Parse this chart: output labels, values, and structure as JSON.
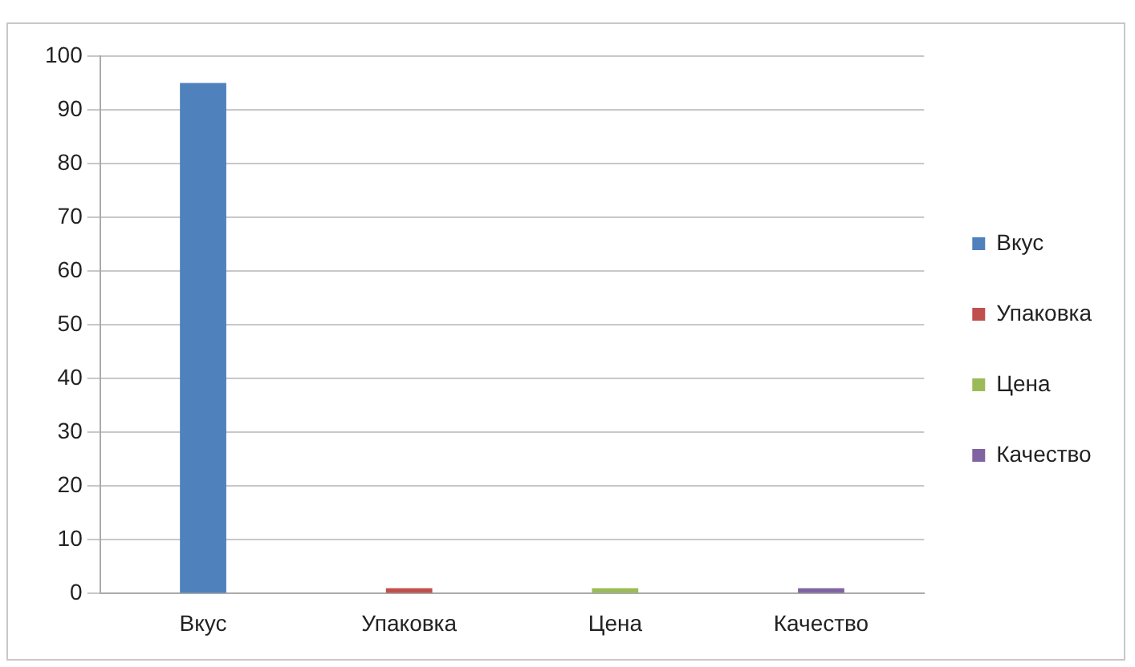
{
  "chart_data": {
    "type": "bar",
    "categories": [
      "Вкус",
      "Упаковка",
      "Цена",
      "Качество"
    ],
    "series": [
      {
        "name": "Вкус",
        "color": "#4f81bd",
        "values": [
          95,
          null,
          null,
          null
        ]
      },
      {
        "name": "Упаковка",
        "color": "#c0504d",
        "values": [
          null,
          1,
          null,
          null
        ]
      },
      {
        "name": "Цена",
        "color": "#9bbb59",
        "values": [
          null,
          null,
          1,
          null
        ]
      },
      {
        "name": "Качество",
        "color": "#8064a2",
        "values": [
          null,
          null,
          null,
          1
        ]
      }
    ],
    "ylim": [
      0,
      100
    ],
    "yticks": [
      0,
      10,
      20,
      30,
      40,
      50,
      60,
      70,
      80,
      90,
      100
    ],
    "grid": "y",
    "legend": "right"
  }
}
